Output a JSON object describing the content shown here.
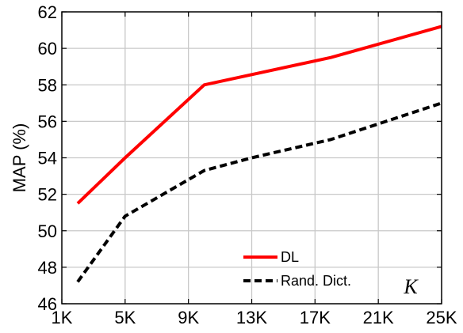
{
  "chart_data": {
    "type": "line",
    "xlabel": "K",
    "ylabel": "MAP (%)",
    "x_ticks": [
      "1K",
      "5K",
      "9K",
      "13K",
      "17K",
      "21K",
      "25K"
    ],
    "y_ticks": [
      "46",
      "48",
      "50",
      "52",
      "54",
      "56",
      "58",
      "60",
      "62"
    ],
    "xlim": [
      1000,
      25000
    ],
    "ylim": [
      46,
      62
    ],
    "grid": true,
    "legend_position": "bottom-right",
    "series": [
      {
        "name": "DL",
        "color": "#ff0000",
        "style": "solid",
        "x": [
          2000,
          5000,
          10000,
          18000,
          25000
        ],
        "y": [
          51.5,
          54,
          58,
          59.5,
          61.2
        ]
      },
      {
        "name": "Rand. Dict.",
        "color": "#000000",
        "style": "dashed",
        "x": [
          2000,
          5000,
          10000,
          13000,
          18000,
          25000
        ],
        "y": [
          47.2,
          50.8,
          53.3,
          54,
          55,
          57
        ]
      }
    ]
  }
}
